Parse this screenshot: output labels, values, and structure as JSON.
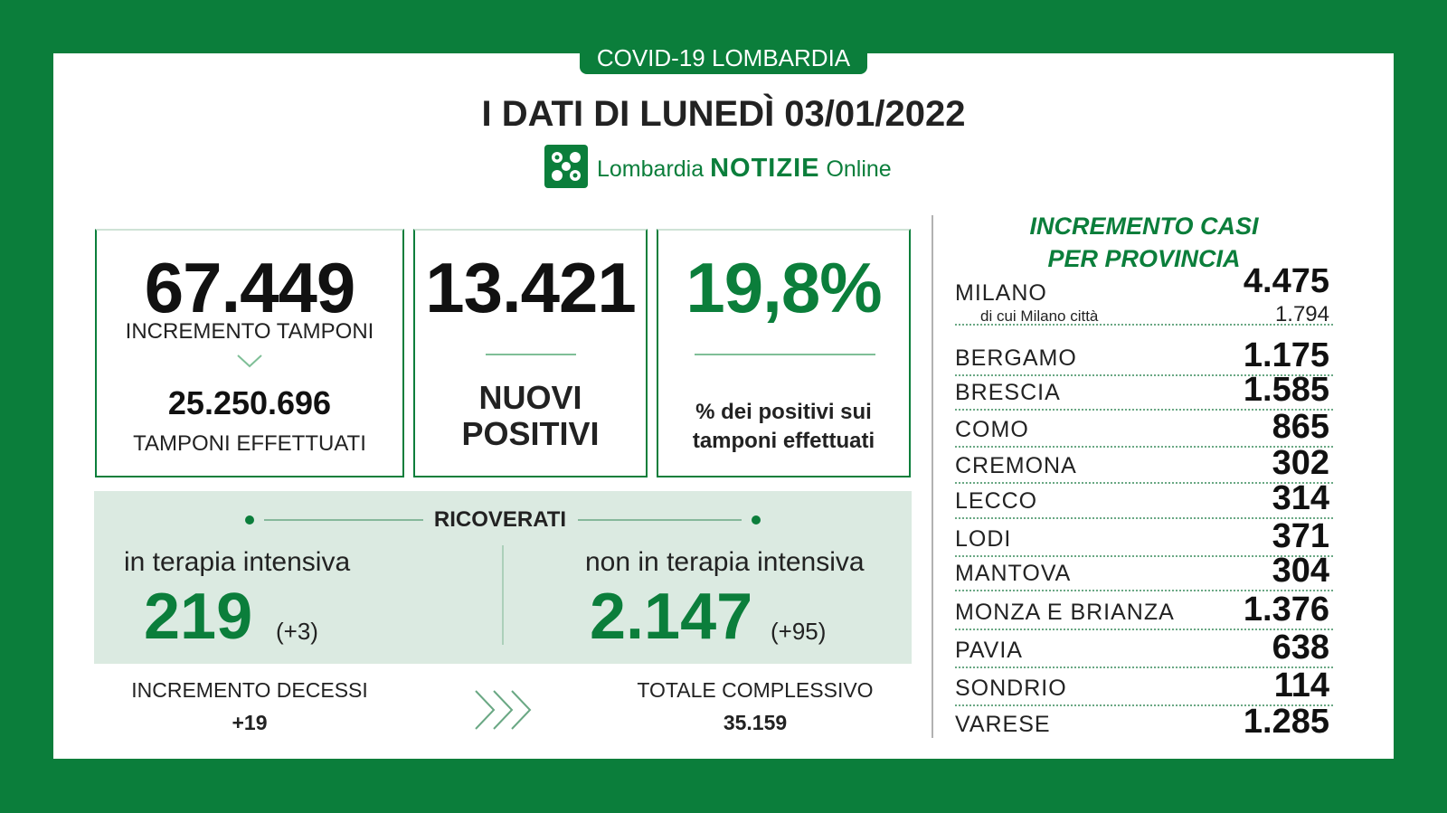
{
  "header": {
    "tag": "COVID-19 LOMBARDIA",
    "title": "I DATI DI LUNEDÌ 03/01/2022",
    "logo": {
      "brand": "Lombardia",
      "name": "NOTIZIE",
      "suffix": "Online"
    }
  },
  "tamponi": {
    "increment": "67.449",
    "increment_label": "INCREMENTO TAMPONI",
    "total": "25.250.696",
    "total_label": "TAMPONI EFFETTUATI"
  },
  "positivi": {
    "value": "13.421",
    "label": "NUOVI POSITIVI"
  },
  "rate": {
    "value": "19,8%",
    "label": "% dei positivi sui tamponi effettuati"
  },
  "ricoverati": {
    "title": "RICOVERATI",
    "intensive": {
      "label": "in terapia intensiva",
      "value": "219",
      "delta": "(+3)"
    },
    "non_intensive": {
      "label": "non in terapia intensiva",
      "value": "2.147",
      "delta": "(+95)"
    }
  },
  "decessi": {
    "label": "INCREMENTO DECESSI",
    "value": "+19"
  },
  "totale": {
    "label": "TOTALE COMPLESSIVO",
    "value": "35.159"
  },
  "provinces": {
    "title": "INCREMENTO CASI PER PROVINCIA",
    "milano_city": {
      "label": "di cui Milano città",
      "value": "1.794"
    },
    "rows": [
      {
        "name": "MILANO",
        "value": "4.475"
      },
      {
        "name": "BERGAMO",
        "value": "1.175"
      },
      {
        "name": "BRESCIA",
        "value": "1.585"
      },
      {
        "name": "COMO",
        "value": "865"
      },
      {
        "name": "CREMONA",
        "value": "302"
      },
      {
        "name": "LECCO",
        "value": "314"
      },
      {
        "name": "LODI",
        "value": "371"
      },
      {
        "name": "MANTOVA",
        "value": "304"
      },
      {
        "name": "MONZA E BRIANZA",
        "value": "1.376"
      },
      {
        "name": "PAVIA",
        "value": "638"
      },
      {
        "name": "SONDRIO",
        "value": "114"
      },
      {
        "name": "VARESE",
        "value": "1.285"
      }
    ]
  }
}
